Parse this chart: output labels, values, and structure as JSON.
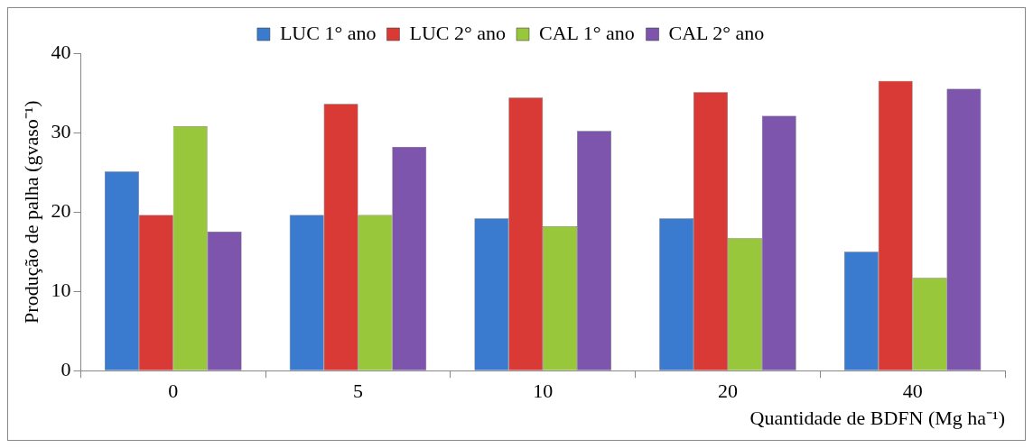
{
  "chart_data": {
    "type": "bar",
    "xlabel": "Quantidade de BDFN (Mg ha⁻¹)",
    "ylabel": "Produção de palha (gvaso⁻¹)",
    "categories": [
      "0",
      "5",
      "10",
      "20",
      "40"
    ],
    "series": [
      {
        "name": "LUC 1° ano",
        "color": "#3a7bd0",
        "values": [
          25.1,
          19.6,
          19.2,
          19.2,
          15.0
        ]
      },
      {
        "name": "LUC 2° ano",
        "color": "#d93a36",
        "values": [
          19.6,
          33.6,
          34.4,
          35.1,
          36.5
        ]
      },
      {
        "name": "CAL 1° ano",
        "color": "#98c73c",
        "values": [
          30.8,
          19.6,
          18.2,
          16.7,
          11.7
        ]
      },
      {
        "name": "CAL 2° ano",
        "color": "#7e55ad",
        "values": [
          17.5,
          28.2,
          30.2,
          32.1,
          35.5
        ]
      }
    ],
    "ylim": [
      0,
      40
    ],
    "yticks": [
      0,
      10,
      20,
      30,
      40
    ],
    "grid": false,
    "legend": "top"
  }
}
